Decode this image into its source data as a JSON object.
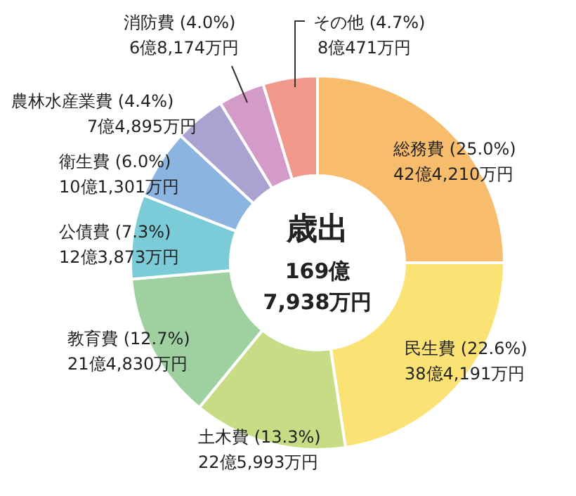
{
  "chart_data": {
    "type": "donut",
    "categories": [
      "総務費",
      "民生費",
      "土木費",
      "教育費",
      "公債費",
      "衛生費",
      "農林水産業費",
      "消防費",
      "その他"
    ],
    "values": [
      25.0,
      22.6,
      13.3,
      12.7,
      7.3,
      6.0,
      4.4,
      4.0,
      4.7
    ],
    "colors": [
      "#f8bd6c",
      "#fbe275",
      "#c7dc85",
      "#9fd0a0",
      "#7ccbd8",
      "#8cb4e0",
      "#aaa3d2",
      "#d49ac8",
      "#f0998a"
    ],
    "value_labels": [
      "(25.0%)\n42億4,210万円",
      "(22.6%)\n38億4,191万円",
      "(13.3%)\n22億5,993万円",
      "(12.7%)\n21億4,830万円",
      "(7.3%)\n12億3,873万円",
      "(6.0%)\n10億1,301万円",
      "(4.4%)\n7億4,895万円",
      "(4.0%)\n6億8,174万円",
      "(4.7%)\n8億471万円"
    ],
    "annotations": [
      "歳出",
      "169億",
      "7,938万円"
    ],
    "legend": false
  }
}
